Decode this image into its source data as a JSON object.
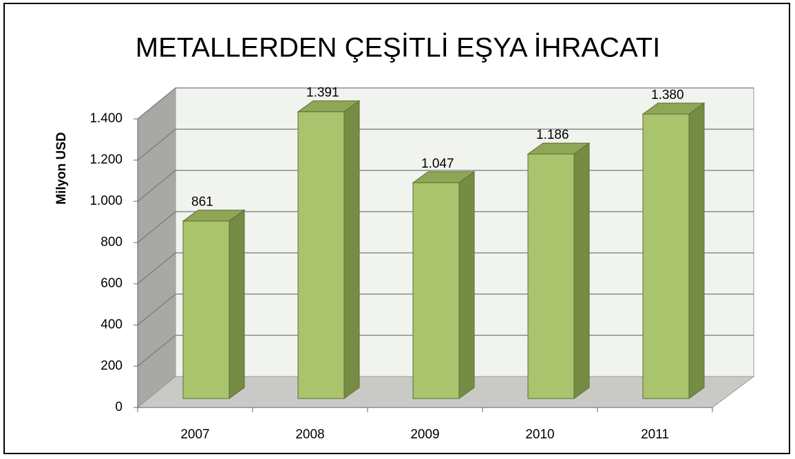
{
  "chart_data": {
    "type": "bar3d",
    "title": "METALLERDEN ÇEŞİTLİ EŞYA İHRACATI",
    "y_label": "Milyon USD",
    "categories": [
      "2007",
      "2008",
      "2009",
      "2010",
      "2011"
    ],
    "values": [
      861,
      1391,
      1047,
      1186,
      1380
    ],
    "value_labels": [
      "861",
      "1.391",
      "1.047",
      "1.186",
      "1.380"
    ],
    "color": "#a9c46c",
    "ylim": [
      0,
      1400
    ],
    "yticks": [
      0,
      200,
      400,
      600,
      800,
      {
        "value": 1000,
        "label": "1.000"
      },
      {
        "value": 1200,
        "label": "1.200"
      },
      {
        "value": 1400,
        "label": "1.400"
      }
    ],
    "grid": true
  }
}
